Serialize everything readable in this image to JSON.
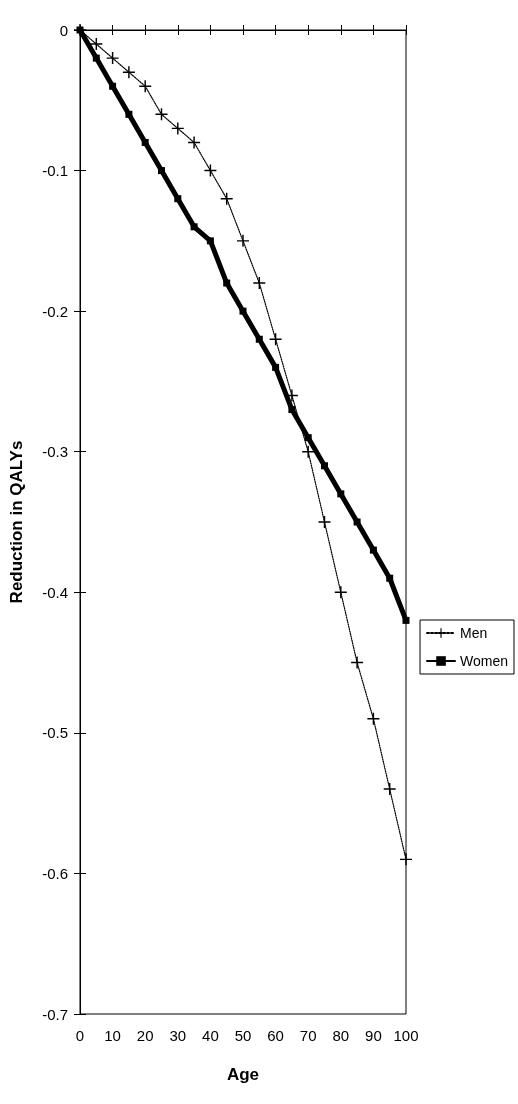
{
  "chart_data": {
    "type": "line",
    "xlabel": "Age",
    "ylabel": "Reduction in QALYs",
    "x": [
      0,
      5,
      10,
      15,
      20,
      25,
      30,
      35,
      40,
      45,
      50,
      55,
      60,
      65,
      70,
      75,
      80,
      85,
      90,
      95,
      100
    ],
    "series": [
      {
        "name": "Men",
        "color": "#000000",
        "marker": "cross",
        "line_style": "dotted",
        "values": [
          0,
          -0.01,
          -0.02,
          -0.03,
          -0.04,
          -0.06,
          -0.07,
          -0.08,
          -0.1,
          -0.12,
          -0.15,
          -0.18,
          -0.22,
          -0.26,
          -0.3,
          -0.35,
          -0.4,
          -0.45,
          -0.49,
          -0.54,
          -0.59
        ]
      },
      {
        "name": "Women",
        "color": "#000000",
        "marker": "square",
        "line_style": "solid",
        "values": [
          0,
          -0.02,
          -0.04,
          -0.06,
          -0.08,
          -0.1,
          -0.12,
          -0.14,
          -0.15,
          -0.18,
          -0.2,
          -0.22,
          -0.24,
          -0.27,
          -0.29,
          -0.31,
          -0.33,
          -0.35,
          -0.37,
          -0.39,
          -0.42
        ]
      }
    ],
    "xlim": [
      0,
      100
    ],
    "xticks": [
      0,
      10,
      20,
      30,
      40,
      50,
      60,
      70,
      80,
      90,
      100
    ],
    "ylim": [
      -0.7,
      0
    ],
    "yticks": [
      0,
      -0.1,
      -0.2,
      -0.3,
      -0.4,
      -0.5,
      -0.6,
      -0.7
    ],
    "grid": false,
    "legend": "right"
  }
}
